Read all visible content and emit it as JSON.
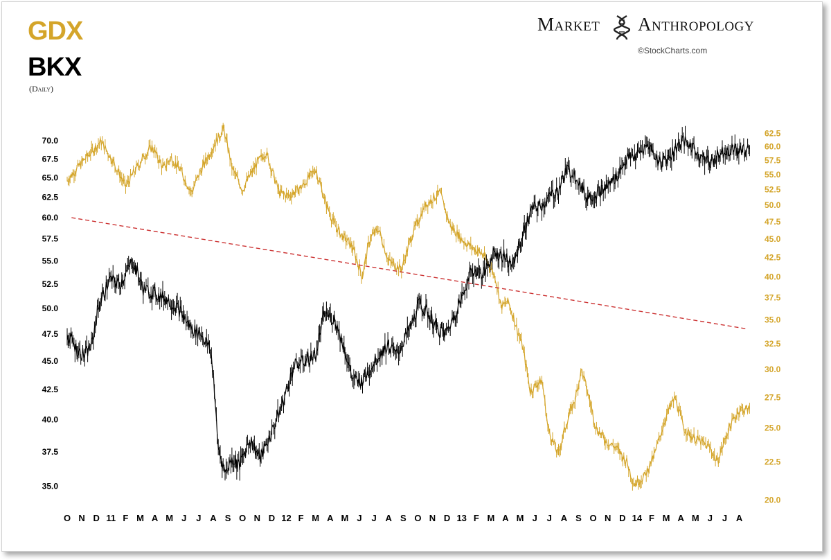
{
  "header": {
    "series1": "GDX",
    "series2": "BKX",
    "frequency": "(Daily)",
    "brand_word1": "Market",
    "brand_word2": "Anthropology",
    "copyright": "©StockCharts.com"
  },
  "colors": {
    "gdx": "#d4a52a",
    "bkx": "#000000",
    "trendline": "#cc3333",
    "background": "#ffffff"
  },
  "chart_data": {
    "type": "line",
    "title": "GDX vs BKX (Daily)",
    "x_ticks": [
      "O",
      "N",
      "D",
      "11",
      "F",
      "M",
      "A",
      "M",
      "J",
      "J",
      "A",
      "S",
      "O",
      "N",
      "D",
      "12",
      "F",
      "M",
      "A",
      "M",
      "J",
      "J",
      "A",
      "S",
      "O",
      "N",
      "D",
      "13",
      "F",
      "M",
      "A",
      "M",
      "J",
      "J",
      "A",
      "S",
      "O",
      "N",
      "D",
      "14",
      "F",
      "M",
      "A",
      "M",
      "J",
      "J",
      "A"
    ],
    "left_axis": {
      "series": "BKX",
      "ticks": [
        35.0,
        37.5,
        40.0,
        42.5,
        45.0,
        47.5,
        50.0,
        52.5,
        55.0,
        57.5,
        60.0,
        62.5,
        65.0,
        67.5,
        70.0
      ],
      "labels": [
        "35.0",
        "37.5",
        "40.0",
        "42.5",
        "45.0",
        "47.5",
        "50.0",
        "52.5",
        "55.0",
        "57.5",
        "60.0",
        "62.5",
        "65.0",
        "67.5",
        "70.0"
      ],
      "range": [
        33.5,
        72.5
      ],
      "scale": "log"
    },
    "right_axis": {
      "series": "GDX",
      "ticks": [
        20.0,
        22.5,
        25.0,
        27.5,
        30.0,
        32.5,
        35.0,
        37.5,
        40.0,
        42.5,
        45.0,
        47.5,
        50.0,
        52.5,
        55.0,
        57.5,
        60.0,
        62.5
      ],
      "labels": [
        "20.0",
        "22.5",
        "25.0",
        "27.5",
        "30.0",
        "32.5",
        "35.0",
        "37.5",
        "40.0",
        "42.5",
        "45.0",
        "47.5",
        "50.0",
        "52.5",
        "55.0",
        "57.5",
        "60.0",
        "62.5"
      ],
      "range": [
        19.5,
        64.5
      ],
      "scale": "log"
    },
    "series": [
      {
        "name": "GDX",
        "axis": "right",
        "x": [
          0,
          1.3,
          2.3,
          3.0,
          4.0,
          5.2,
          5.8,
          6.6,
          7.1,
          7.8,
          8.5,
          9.2,
          10.2,
          10.7,
          11.3,
          12.0,
          13.0,
          13.6,
          14.5,
          15.2,
          16.1,
          17.0,
          17.6,
          18.2,
          18.6,
          19.5,
          20.2,
          20.7,
          21.3,
          22.0,
          22.9,
          23.5,
          24.5,
          25.5,
          26.2,
          27.0,
          27.6,
          28.4,
          28.9,
          29.3,
          29.7,
          30.2,
          30.6,
          30.9,
          31.2,
          31.7,
          32.0,
          32.5,
          32.9,
          33.6,
          34.2,
          34.8,
          35.2,
          35.6,
          36.2,
          36.9,
          37.6,
          38.3,
          38.8,
          39.5,
          40.2,
          41.0,
          41.6,
          42.2,
          42.6,
          43.3,
          44.0,
          44.5,
          45.3,
          46.0,
          46.7
        ],
        "values": [
          54.0,
          58.0,
          61.0,
          58.0,
          53.0,
          58.0,
          60.0,
          56.0,
          58.0,
          55.5,
          52.0,
          56.0,
          61.0,
          63.5,
          56.0,
          52.5,
          57.0,
          59.0,
          52.0,
          51.5,
          53.0,
          56.0,
          51.0,
          47.5,
          46.0,
          44.0,
          40.0,
          45.0,
          46.5,
          42.0,
          41.0,
          45.0,
          50.0,
          52.0,
          47.0,
          45.0,
          44.0,
          43.0,
          41.5,
          40.0,
          36.5,
          37.0,
          35.0,
          33.5,
          32.0,
          28.0,
          28.5,
          29.0,
          25.0,
          23.0,
          25.5,
          27.5,
          30.0,
          28.0,
          25.0,
          24.0,
          23.5,
          22.5,
          21.0,
          21.5,
          23.0,
          26.0,
          27.5,
          25.0,
          24.5,
          24.0,
          23.5,
          22.5,
          25.0,
          26.5,
          26.5
        ]
      },
      {
        "name": "BKX",
        "axis": "left",
        "x": [
          0,
          0.7,
          1.2,
          1.7,
          2.1,
          2.9,
          3.6,
          4.5,
          5.2,
          6.0,
          6.8,
          7.6,
          8.5,
          9.2,
          9.8,
          10.0,
          10.3,
          10.8,
          11.3,
          11.8,
          12.5,
          13.2,
          14.0,
          14.8,
          15.5,
          16.2,
          17.0,
          17.6,
          18.3,
          19.0,
          19.5,
          20.0,
          20.6,
          21.3,
          22.0,
          22.5,
          23.1,
          23.6,
          24.1,
          24.7,
          25.3,
          25.9,
          26.4,
          27.0,
          27.5,
          28.0,
          28.5,
          29.2,
          29.9,
          30.5,
          31.2,
          31.8,
          32.5,
          33.0,
          33.6,
          34.2,
          34.8,
          35.5,
          36.2,
          36.8,
          37.5,
          38.3,
          39.0,
          39.8,
          40.5,
          41.3,
          42.0,
          42.6,
          43.3,
          44.0,
          44.8,
          45.5,
          46.2,
          46.7
        ],
        "values": [
          47.5,
          46.0,
          45.5,
          46.5,
          50.0,
          53.0,
          52.5,
          55.0,
          52.0,
          51.5,
          51.0,
          50.0,
          48.0,
          47.5,
          46.0,
          44.0,
          38.0,
          36.0,
          37.0,
          36.5,
          38.5,
          37.0,
          39.0,
          41.5,
          44.5,
          45.0,
          45.5,
          49.5,
          49.0,
          46.0,
          43.5,
          43.0,
          44.0,
          45.5,
          46.5,
          45.5,
          47.0,
          48.5,
          50.5,
          49.5,
          48.0,
          47.5,
          49.0,
          51.0,
          53.5,
          54.0,
          53.5,
          56.0,
          55.5,
          54.5,
          58.0,
          61.0,
          61.5,
          62.5,
          63.5,
          66.0,
          65.5,
          62.5,
          63.0,
          63.5,
          65.0,
          67.5,
          68.0,
          69.5,
          67.0,
          68.0,
          70.0,
          69.5,
          68.0,
          67.0,
          68.5,
          69.0,
          68.5,
          69.0
        ]
      },
      {
        "name": "Trend line",
        "axis": "left",
        "style": "dashed",
        "x": [
          0.3,
          46.5
        ],
        "values": [
          60.0,
          48.0
        ]
      }
    ]
  }
}
